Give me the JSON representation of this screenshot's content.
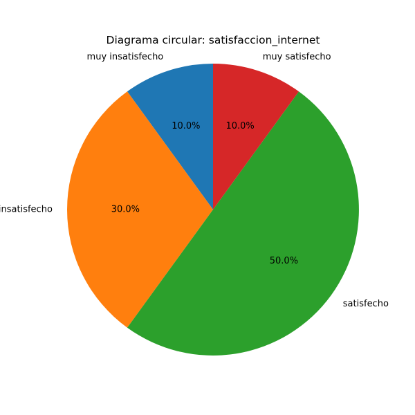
{
  "chart_data": {
    "type": "pie",
    "title": "Diagrama circular: satisfaccion_internet",
    "categories": [
      "muy insatisfecho",
      "insatisfecho",
      "satisfecho",
      "muy satisfecho"
    ],
    "values": [
      10.0,
      30.0,
      50.0,
      10.0
    ],
    "percent_labels": [
      "10.0%",
      "30.0%",
      "50.0%",
      "10.0%"
    ],
    "colors": [
      "#1f77b4",
      "#ff7f0e",
      "#2ca02c",
      "#d62728"
    ],
    "start_angle_deg": 90,
    "direction": "counterclockwise",
    "legend": "none"
  }
}
